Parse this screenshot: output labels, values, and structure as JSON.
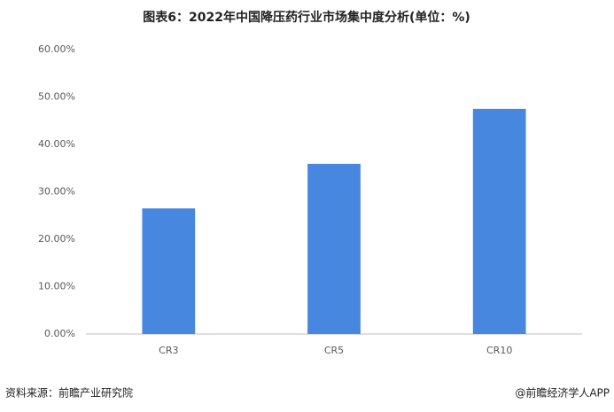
{
  "chart_data": {
    "type": "bar",
    "title": "图表6：2022年中国降压药行业市场集中度分析(单位：%)",
    "categories": [
      "CR3",
      "CR5",
      "CR10"
    ],
    "values": [
      26.5,
      35.9,
      47.5
    ],
    "color": "#4787e0",
    "ylim": [
      0,
      60
    ],
    "yticks": [
      {
        "value": 0,
        "label": "0.00%"
      },
      {
        "value": 10,
        "label": "10.00%"
      },
      {
        "value": 20,
        "label": "20.00%"
      },
      {
        "value": 30,
        "label": "30.00%"
      },
      {
        "value": 40,
        "label": "40.00%"
      },
      {
        "value": 50,
        "label": "50.00%"
      },
      {
        "value": 60,
        "label": "60.00%"
      }
    ],
    "grid": false,
    "source": "资料来源：前瞻产业研究院",
    "credit": "@前瞻经济学人APP"
  }
}
